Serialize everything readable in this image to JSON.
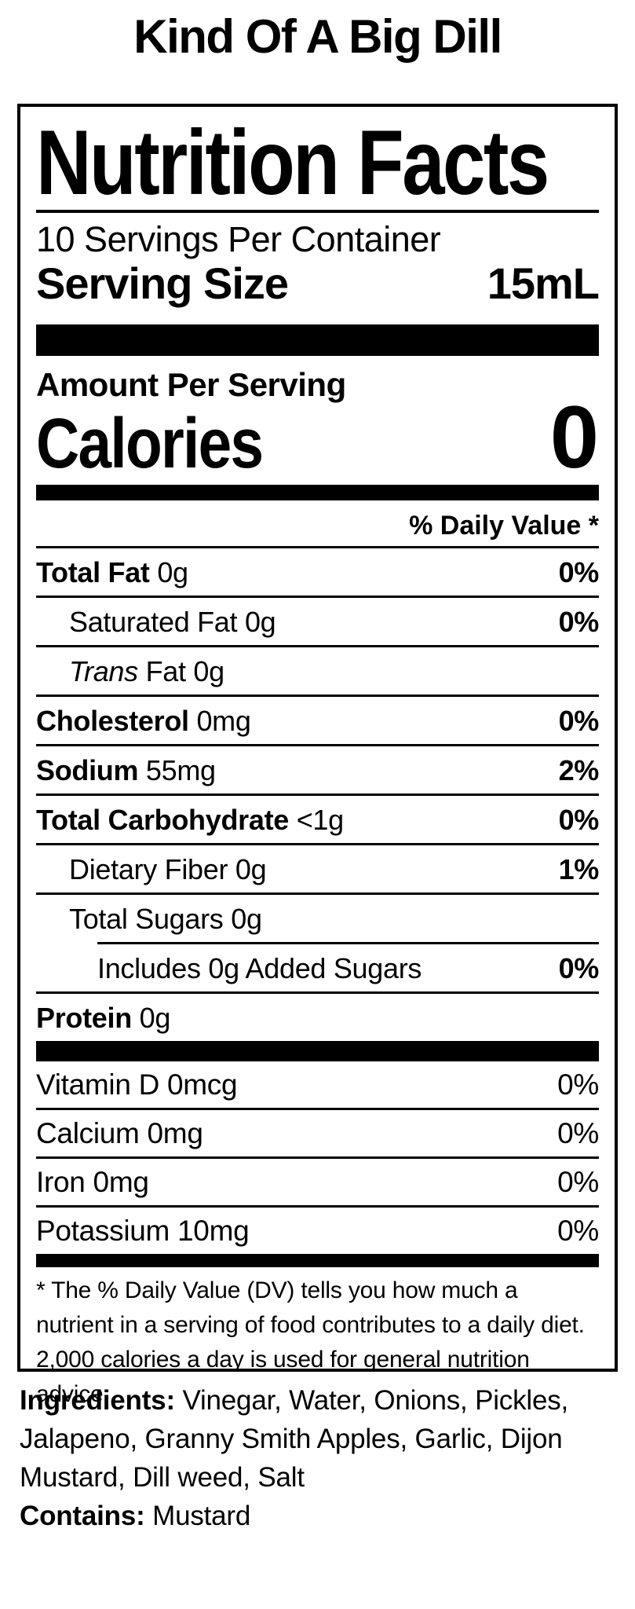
{
  "product_title": "Kind Of A Big Dill",
  "label": {
    "title": "Nutrition Facts",
    "servings_per_container": "10 Servings Per Container",
    "serving_size": {
      "label": "Serving Size",
      "value": "15mL"
    },
    "amount_per_serving": "Amount Per Serving",
    "calories": {
      "label": "Calories",
      "value": "0"
    },
    "daily_value_header": "% Daily Value *",
    "nutrients": [
      {
        "name": "Total Fat",
        "amount": "0g",
        "dv": "0%"
      },
      {
        "name": "Saturated Fat",
        "amount": "0g",
        "dv": "0%"
      },
      {
        "name_italic": "Trans",
        "name": "Fat",
        "amount": "0g",
        "dv": ""
      },
      {
        "name": "Cholesterol",
        "amount": "0mg",
        "dv": "0%"
      },
      {
        "name": "Sodium",
        "amount": "55mg",
        "dv": "2%"
      },
      {
        "name": "Total Carbohydrate",
        "amount": "<1g",
        "dv": "0%"
      },
      {
        "name": "Dietary Fiber",
        "amount": "0g",
        "dv": "1%"
      },
      {
        "name": "Total Sugars",
        "amount": "0g",
        "dv": ""
      },
      {
        "name": "Includes 0g Added Sugars",
        "amount": "",
        "dv": "0%"
      },
      {
        "name": "Protein",
        "amount": "0g",
        "dv": ""
      }
    ],
    "micronutrients": [
      {
        "name": "Vitamin D",
        "amount": "0mcg",
        "dv": "0%"
      },
      {
        "name": "Calcium",
        "amount": "0mg",
        "dv": "0%"
      },
      {
        "name": "Iron",
        "amount": "0mg",
        "dv": "0%"
      },
      {
        "name": "Potassium",
        "amount": "10mg",
        "dv": "0%"
      }
    ],
    "footnote": "* The % Daily Value (DV) tells you how much a nutrient in a serving of food contributes to a daily diet. 2,000 calories a day is used for general nutrition advice."
  },
  "ingredients": {
    "label": "Ingredients:",
    "value": "Vinegar, Water, Onions, Pickles, Jalapeno, Granny Smith Apples, Garlic, Dijon Mustard, Dill weed, Salt"
  },
  "contains": {
    "label": "Contains:",
    "value": "Mustard"
  }
}
